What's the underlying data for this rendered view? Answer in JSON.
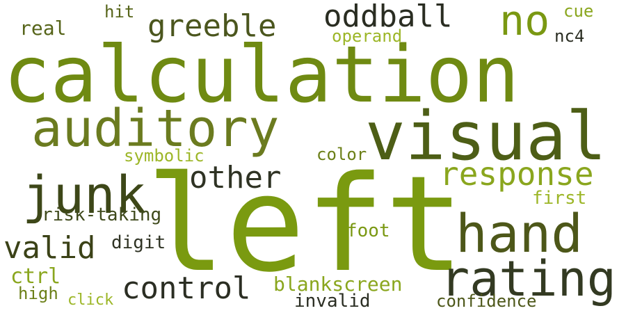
{
  "words": [
    {
      "text": "left",
      "color": "#7a9a10"
    },
    {
      "text": "calculation",
      "color": "#6f8a12"
    },
    {
      "text": "visual",
      "color": "#4d5e16"
    },
    {
      "text": "auditory",
      "color": "#6b7b1f"
    },
    {
      "text": "junk",
      "color": "#3d4718"
    },
    {
      "text": "hand",
      "color": "#4d5719"
    },
    {
      "text": "rating",
      "color": "#333a22"
    },
    {
      "text": "response",
      "color": "#8aa61e"
    },
    {
      "text": "no",
      "color": "#7a9812"
    },
    {
      "text": "oddball",
      "color": "#2a2d22"
    },
    {
      "text": "greeble",
      "color": "#4b561e"
    },
    {
      "text": "other",
      "color": "#2f3324"
    },
    {
      "text": "control",
      "color": "#2b2e23"
    },
    {
      "text": "valid",
      "color": "#3b4217"
    },
    {
      "text": "blankscreen",
      "color": "#8aa61e"
    },
    {
      "text": "real",
      "color": "#566419"
    },
    {
      "text": "hit",
      "color": "#566419"
    },
    {
      "text": "cue",
      "color": "#8aa61e"
    },
    {
      "text": "operand",
      "color": "#9cb627"
    },
    {
      "text": "nc4",
      "color": "#2a2d22"
    },
    {
      "text": "symbolic",
      "color": "#9cb627"
    },
    {
      "text": "color",
      "color": "#6b7f17"
    },
    {
      "text": "risk-taking",
      "color": "#3f4a1c"
    },
    {
      "text": "first",
      "color": "#9cb627"
    },
    {
      "text": "foot",
      "color": "#7a9812"
    },
    {
      "text": "digit",
      "color": "#2f3324"
    },
    {
      "text": "ctrl",
      "color": "#8aa61e"
    },
    {
      "text": "high",
      "color": "#6b7f17"
    },
    {
      "text": "click",
      "color": "#9cb627"
    },
    {
      "text": "invalid",
      "color": "#2a2d22"
    },
    {
      "text": "confidence",
      "color": "#4d5719"
    }
  ]
}
